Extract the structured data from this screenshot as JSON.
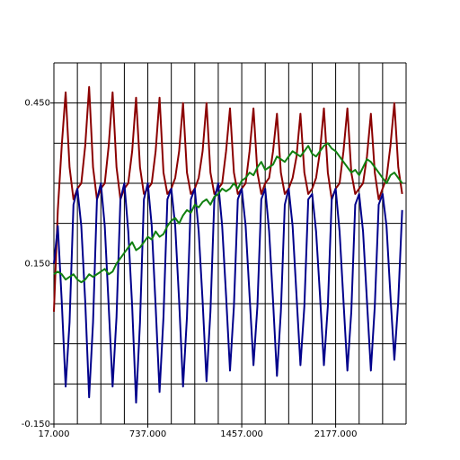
{
  "chart_data": {
    "type": "line",
    "x": [
      17,
      47,
      77,
      107,
      137,
      167,
      197,
      227,
      257,
      287,
      317,
      347,
      377,
      407,
      437,
      467,
      497,
      527,
      557,
      587,
      617,
      647,
      677,
      707,
      737,
      767,
      797,
      827,
      857,
      887,
      917,
      947,
      977,
      1007,
      1037,
      1067,
      1097,
      1127,
      1157,
      1187,
      1217,
      1247,
      1277,
      1307,
      1337,
      1367,
      1397,
      1427,
      1457,
      1487,
      1517,
      1547,
      1577,
      1607,
      1637,
      1667,
      1697,
      1727,
      1757,
      1787,
      1817,
      1847,
      1877,
      1907,
      1937,
      1967,
      1997,
      2027,
      2057,
      2087,
      2117,
      2147,
      2177,
      2207,
      2237,
      2267,
      2297,
      2327,
      2357,
      2387,
      2417,
      2447,
      2477,
      2507,
      2537,
      2567,
      2597,
      2627,
      2657,
      2687
    ],
    "series": [
      {
        "color": "#8b0000",
        "values": [
          0.06,
          0.25,
          0.37,
          0.47,
          0.33,
          0.27,
          0.29,
          0.3,
          0.37,
          0.48,
          0.33,
          0.27,
          0.29,
          0.3,
          0.37,
          0.47,
          0.33,
          0.27,
          0.29,
          0.3,
          0.36,
          0.46,
          0.33,
          0.28,
          0.29,
          0.3,
          0.36,
          0.46,
          0.32,
          0.28,
          0.29,
          0.31,
          0.36,
          0.45,
          0.32,
          0.28,
          0.29,
          0.31,
          0.36,
          0.45,
          0.32,
          0.28,
          0.29,
          0.3,
          0.36,
          0.44,
          0.32,
          0.28,
          0.29,
          0.3,
          0.36,
          0.44,
          0.32,
          0.28,
          0.3,
          0.31,
          0.36,
          0.43,
          0.32,
          0.28,
          0.29,
          0.31,
          0.35,
          0.43,
          0.32,
          0.28,
          0.29,
          0.31,
          0.36,
          0.44,
          0.32,
          0.27,
          0.29,
          0.3,
          0.36,
          0.44,
          0.32,
          0.28,
          0.29,
          0.3,
          0.35,
          0.43,
          0.32,
          0.27,
          0.29,
          0.31,
          0.37,
          0.45,
          0.33,
          0.28
        ]
      },
      {
        "color": "#00008b",
        "values": [
          0.15,
          0.22,
          0.08,
          -0.08,
          0.04,
          0.26,
          0.29,
          0.22,
          0.08,
          -0.1,
          0.04,
          0.27,
          0.3,
          0.22,
          0.07,
          -0.08,
          0.05,
          0.27,
          0.3,
          0.21,
          0.07,
          -0.11,
          0.04,
          0.27,
          0.3,
          0.22,
          0.07,
          -0.09,
          0.05,
          0.27,
          0.29,
          0.22,
          0.08,
          -0.08,
          0.05,
          0.27,
          0.29,
          0.21,
          0.08,
          -0.07,
          0.06,
          0.27,
          0.3,
          0.22,
          0.09,
          -0.05,
          0.07,
          0.27,
          0.29,
          0.22,
          0.09,
          -0.04,
          0.07,
          0.27,
          0.29,
          0.21,
          0.08,
          -0.06,
          0.06,
          0.26,
          0.29,
          0.22,
          0.09,
          -0.04,
          0.07,
          0.27,
          0.28,
          0.21,
          0.09,
          -0.04,
          0.07,
          0.27,
          0.29,
          0.21,
          0.08,
          -0.05,
          0.06,
          0.26,
          0.28,
          0.21,
          0.08,
          -0.05,
          0.07,
          0.26,
          0.28,
          0.22,
          0.09,
          -0.03,
          0.08,
          0.25
        ]
      },
      {
        "color": "#108010",
        "values": [
          0.13,
          0.135,
          0.13,
          0.12,
          0.125,
          0.13,
          0.12,
          0.115,
          0.12,
          0.13,
          0.125,
          0.13,
          0.135,
          0.14,
          0.13,
          0.135,
          0.15,
          0.16,
          0.17,
          0.18,
          0.19,
          0.175,
          0.18,
          0.19,
          0.2,
          0.195,
          0.21,
          0.2,
          0.205,
          0.22,
          0.23,
          0.235,
          0.225,
          0.24,
          0.25,
          0.245,
          0.26,
          0.255,
          0.265,
          0.27,
          0.26,
          0.275,
          0.28,
          0.29,
          0.285,
          0.29,
          0.3,
          0.29,
          0.305,
          0.31,
          0.32,
          0.315,
          0.33,
          0.34,
          0.325,
          0.33,
          0.335,
          0.35,
          0.345,
          0.34,
          0.35,
          0.36,
          0.355,
          0.35,
          0.36,
          0.37,
          0.355,
          0.35,
          0.36,
          0.37,
          0.375,
          0.365,
          0.36,
          0.35,
          0.34,
          0.33,
          0.32,
          0.325,
          0.315,
          0.33,
          0.345,
          0.34,
          0.33,
          0.32,
          0.31,
          0.3,
          0.315,
          0.32,
          0.31,
          0.3
        ]
      }
    ],
    "xlim": [
      17,
      2717
    ],
    "xticks": [
      {
        "value": 17,
        "label": "17.000"
      },
      {
        "value": 737,
        "label": "737.000"
      },
      {
        "value": 1457,
        "label": "1457.000"
      },
      {
        "value": 2177,
        "label": "2177.000"
      }
    ],
    "xgrid": [
      17,
      197,
      377,
      557,
      737,
      917,
      1097,
      1277,
      1457,
      1637,
      1817,
      1997,
      2177,
      2357,
      2537,
      2717
    ],
    "ylim": [
      -0.15,
      0.525
    ],
    "yticks": [
      {
        "value": -0.15,
        "label": "-0.150"
      },
      {
        "value": 0.15,
        "label": "0.150"
      },
      {
        "value": 0.45,
        "label": "0.450"
      }
    ],
    "ygrid": [
      -0.15,
      -0.075,
      0,
      0.075,
      0.15,
      0.225,
      0.3,
      0.375,
      0.45,
      0.525
    ]
  }
}
